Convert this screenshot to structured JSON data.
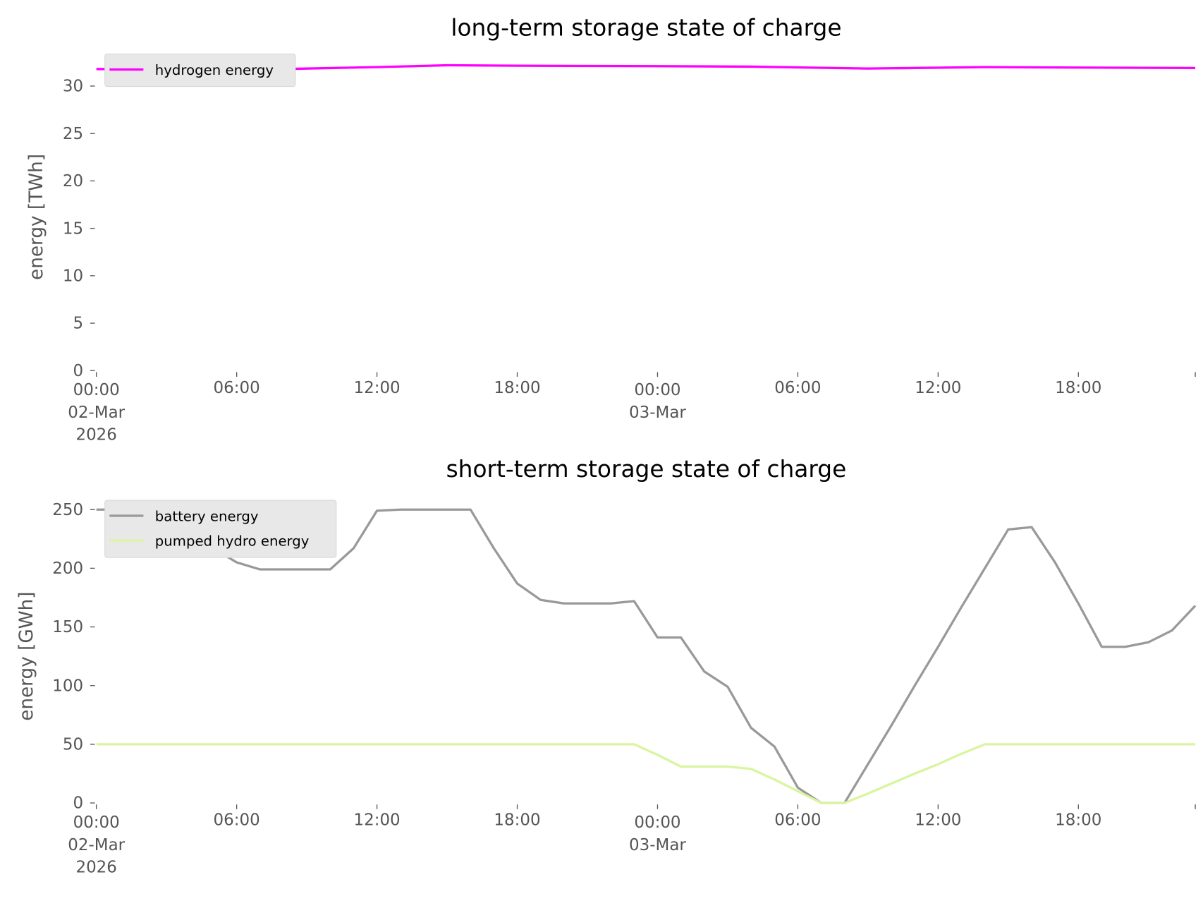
{
  "chart_data": [
    {
      "type": "line",
      "title": "long-term storage state of charge",
      "xlabel": "",
      "ylabel": "energy [TWh]",
      "ylim": [
        0,
        32.5
      ],
      "yticks": [
        "0",
        "5",
        "10",
        "15",
        "20",
        "25",
        "30"
      ],
      "ytick_values": [
        0,
        5,
        10,
        15,
        20,
        25,
        30
      ],
      "xticks": [
        [
          "00:00",
          "02-Mar",
          "2026"
        ],
        [
          "06:00"
        ],
        [
          "12:00"
        ],
        [
          "18:00"
        ],
        [
          "00:00",
          "03-Mar"
        ],
        [
          "06:00"
        ],
        [
          "12:00"
        ],
        [
          "18:00"
        ]
      ],
      "xtick_hours": [
        0,
        6,
        12,
        18,
        24,
        30,
        36,
        42
      ],
      "xlim_hours": [
        0,
        47
      ],
      "legend_position": "upper-left",
      "series": [
        {
          "name": "hydrogen energy",
          "color": "#ff00ff",
          "x_hours": [
            0,
            4,
            8,
            12,
            15,
            18,
            24,
            28,
            33,
            38,
            42,
            47
          ],
          "values": [
            31.8,
            31.75,
            31.8,
            32.0,
            32.2,
            32.15,
            32.1,
            32.05,
            31.85,
            32.0,
            31.95,
            31.9
          ]
        }
      ]
    },
    {
      "type": "line",
      "title": "short-term storage state of charge",
      "xlabel": "",
      "ylabel": "energy [GWh]",
      "ylim": [
        0,
        250
      ],
      "yticks": [
        "0",
        "50",
        "100",
        "150",
        "200",
        "250"
      ],
      "ytick_values": [
        0,
        50,
        100,
        150,
        200,
        250
      ],
      "xticks": [
        [
          "00:00",
          "02-Mar",
          "2026"
        ],
        [
          "06:00"
        ],
        [
          "12:00"
        ],
        [
          "18:00"
        ],
        [
          "00:00",
          "03-Mar"
        ],
        [
          "06:00"
        ],
        [
          "12:00"
        ],
        [
          "18:00"
        ]
      ],
      "xtick_hours": [
        0,
        6,
        12,
        18,
        24,
        30,
        36,
        42
      ],
      "xlim_hours": [
        0,
        47
      ],
      "legend_position": "upper-left",
      "series": [
        {
          "name": "battery energy",
          "color": "#999999",
          "values": [
            250,
            250,
            242,
            233,
            225,
            217,
            205,
            199,
            199,
            199,
            199,
            217,
            249,
            250,
            250,
            250,
            250,
            217,
            187,
            173,
            170,
            170,
            170,
            172,
            141,
            141,
            112,
            99,
            64,
            48,
            13,
            0,
            0,
            33,
            66,
            100,
            133,
            167,
            200,
            233,
            235,
            205,
            170,
            133,
            133,
            137,
            147,
            168
          ]
        },
        {
          "name": "pumped hydro energy",
          "color": "#d9f5a0",
          "values": [
            50,
            50,
            50,
            50,
            50,
            50,
            50,
            50,
            50,
            50,
            50,
            50,
            50,
            50,
            50,
            50,
            50,
            50,
            50,
            50,
            50,
            50,
            50,
            50,
            41,
            31,
            31,
            31,
            29,
            20,
            10,
            0,
            0,
            8,
            16.5,
            25,
            33,
            42,
            50,
            50,
            50,
            50,
            50,
            50,
            50,
            50,
            50,
            50
          ]
        }
      ]
    }
  ]
}
